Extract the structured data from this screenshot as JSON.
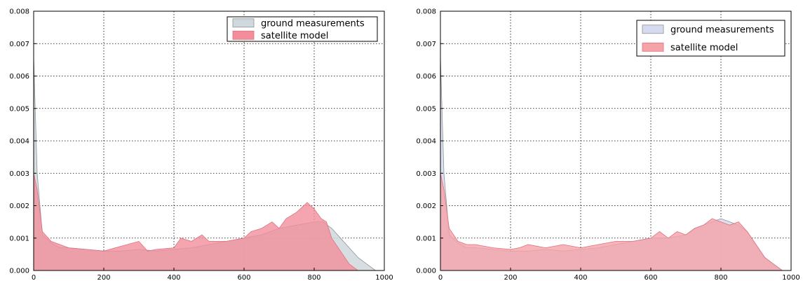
{
  "chart_data": [
    {
      "type": "area",
      "xlim": [
        0,
        1000
      ],
      "ylim": [
        0,
        0.008
      ],
      "x_ticks": [
        0,
        200,
        400,
        600,
        800,
        1000
      ],
      "y_ticks": [
        0.0,
        0.001,
        0.002,
        0.003,
        0.004,
        0.005,
        0.006,
        0.007,
        0.008
      ],
      "x_tick_labels": [
        "0",
        "200",
        "400",
        "600",
        "800",
        "1000"
      ],
      "y_tick_labels": [
        "0.000",
        "0.001",
        "0.002",
        "0.003",
        "0.004",
        "0.005",
        "0.006",
        "0.007",
        "0.008"
      ],
      "grid": true,
      "legend_position": "top-right",
      "series": [
        {
          "name": "ground measurements",
          "color": "#cfd8dc",
          "x": [
            0,
            10,
            25,
            50,
            75,
            100,
            150,
            200,
            250,
            300,
            350,
            400,
            450,
            500,
            550,
            600,
            650,
            700,
            750,
            800,
            825,
            850,
            875,
            900,
            925,
            950,
            975
          ],
          "y": [
            0.0066,
            0.003,
            0.0011,
            0.00085,
            0.0007,
            0.0007,
            0.00065,
            0.0006,
            0.0006,
            0.00065,
            0.0006,
            0.00065,
            0.0007,
            0.0008,
            0.0009,
            0.001,
            0.0011,
            0.0013,
            0.0014,
            0.0015,
            0.0015,
            0.0013,
            0.001,
            0.0007,
            0.0004,
            0.0002,
            0.0
          ]
        },
        {
          "name": "satellite model",
          "color": "#f28e9b",
          "x": [
            0,
            10,
            25,
            50,
            75,
            100,
            150,
            200,
            250,
            300,
            325,
            350,
            400,
            420,
            450,
            480,
            500,
            550,
            600,
            620,
            650,
            680,
            700,
            720,
            750,
            780,
            800,
            820,
            835,
            850,
            875,
            900,
            925
          ],
          "y": [
            0.003,
            0.0025,
            0.0012,
            0.0009,
            0.0008,
            0.0007,
            0.00065,
            0.0006,
            0.00075,
            0.0009,
            0.0006,
            0.00065,
            0.0007,
            0.001,
            0.0009,
            0.0011,
            0.0009,
            0.0009,
            0.001,
            0.0012,
            0.0013,
            0.0015,
            0.0013,
            0.0016,
            0.0018,
            0.0021,
            0.0019,
            0.0016,
            0.0015,
            0.001,
            0.0006,
            0.0002,
            0.0
          ]
        }
      ]
    },
    {
      "type": "area",
      "xlim": [
        0,
        1000
      ],
      "ylim": [
        0,
        0.008
      ],
      "x_ticks": [
        0,
        200,
        400,
        600,
        800,
        1000
      ],
      "y_ticks": [
        0.0,
        0.001,
        0.002,
        0.003,
        0.004,
        0.005,
        0.006,
        0.007,
        0.008
      ],
      "x_tick_labels": [
        "0",
        "200",
        "400",
        "600",
        "800",
        "1000"
      ],
      "y_tick_labels": [
        "0.000",
        "0.001",
        "0.002",
        "0.003",
        "0.004",
        "0.005",
        "0.006",
        "0.007",
        "0.008"
      ],
      "grid": true,
      "legend_position": "top-right",
      "series": [
        {
          "name": "ground measurements",
          "color": "#d7dbef",
          "x": [
            0,
            10,
            25,
            50,
            75,
            100,
            150,
            200,
            250,
            300,
            350,
            400,
            450,
            500,
            550,
            600,
            650,
            700,
            725,
            750,
            775,
            800,
            825,
            850,
            875,
            900,
            925,
            950,
            975
          ],
          "y": [
            0.0066,
            0.003,
            0.0011,
            0.00085,
            0.0007,
            0.0007,
            0.00065,
            0.0006,
            0.0006,
            0.00065,
            0.0006,
            0.00065,
            0.0007,
            0.0008,
            0.0009,
            0.001,
            0.001,
            0.0011,
            0.0013,
            0.0014,
            0.0015,
            0.0016,
            0.0015,
            0.0014,
            0.0012,
            0.0008,
            0.0004,
            0.0002,
            0.0
          ]
        },
        {
          "name": "satellite model",
          "color": "#f5a3a7",
          "x": [
            0,
            10,
            25,
            50,
            75,
            100,
            150,
            200,
            225,
            250,
            300,
            350,
            400,
            450,
            500,
            550,
            600,
            625,
            650,
            675,
            700,
            725,
            750,
            775,
            800,
            825,
            850,
            875,
            900,
            925,
            950,
            975
          ],
          "y": [
            0.003,
            0.0025,
            0.0013,
            0.0009,
            0.0008,
            0.0008,
            0.0007,
            0.00065,
            0.0007,
            0.0008,
            0.0007,
            0.0008,
            0.0007,
            0.0008,
            0.0009,
            0.0009,
            0.001,
            0.0012,
            0.001,
            0.0012,
            0.0011,
            0.0013,
            0.0014,
            0.0016,
            0.0015,
            0.0014,
            0.0015,
            0.0012,
            0.0008,
            0.0004,
            0.0002,
            0.0
          ]
        }
      ]
    }
  ]
}
